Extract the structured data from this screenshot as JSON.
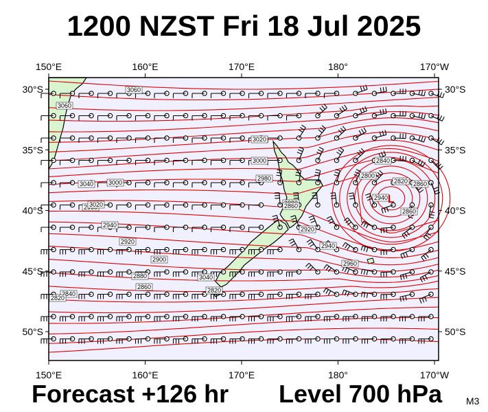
{
  "title": "1200 NZST Fri 18 Jul 2025",
  "footer": {
    "forecast": "Forecast +126 hr",
    "level": "Level 700 hPa",
    "model": "M3"
  },
  "colors": {
    "ocean": "#f0f0ff",
    "land": "#d8f5d0",
    "contour": "#e00000",
    "barb": "#000000"
  },
  "map": {
    "lon_labels": [
      "150°E",
      "160°E",
      "170°E",
      "180°",
      "170°W"
    ],
    "lat_labels": [
      "30°S",
      "35°S",
      "40°S",
      "45°S",
      "50°S"
    ],
    "contour_labels": [
      "3060",
      "3060",
      "3040",
      "3020",
      "3000",
      "2980",
      "2960",
      "2940",
      "2920",
      "2900",
      "2880",
      "2860",
      "2840",
      "2820",
      "2880",
      "2920",
      "2940",
      "2960",
      "2860",
      "2840",
      "2800",
      "2820",
      "2860",
      "2860",
      "3000",
      "3020",
      "3040",
      "2820",
      "2940"
    ],
    "pressure_features": [
      {
        "symbol": "L",
        "lon": 185.5,
        "lat": -39
      }
    ]
  }
}
